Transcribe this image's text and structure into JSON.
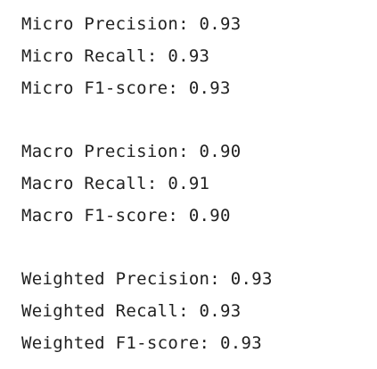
{
  "output": {
    "lines": [
      "Micro Precision: 0.93",
      "Micro Recall: 0.93",
      "Micro F1-score: 0.93",
      "",
      "Macro Precision: 0.90",
      "Macro Recall: 0.91",
      "Macro F1-score: 0.90",
      "",
      "Weighted Precision: 0.93",
      "Weighted Recall: 0.93",
      "Weighted F1-score: 0.93"
    ]
  }
}
